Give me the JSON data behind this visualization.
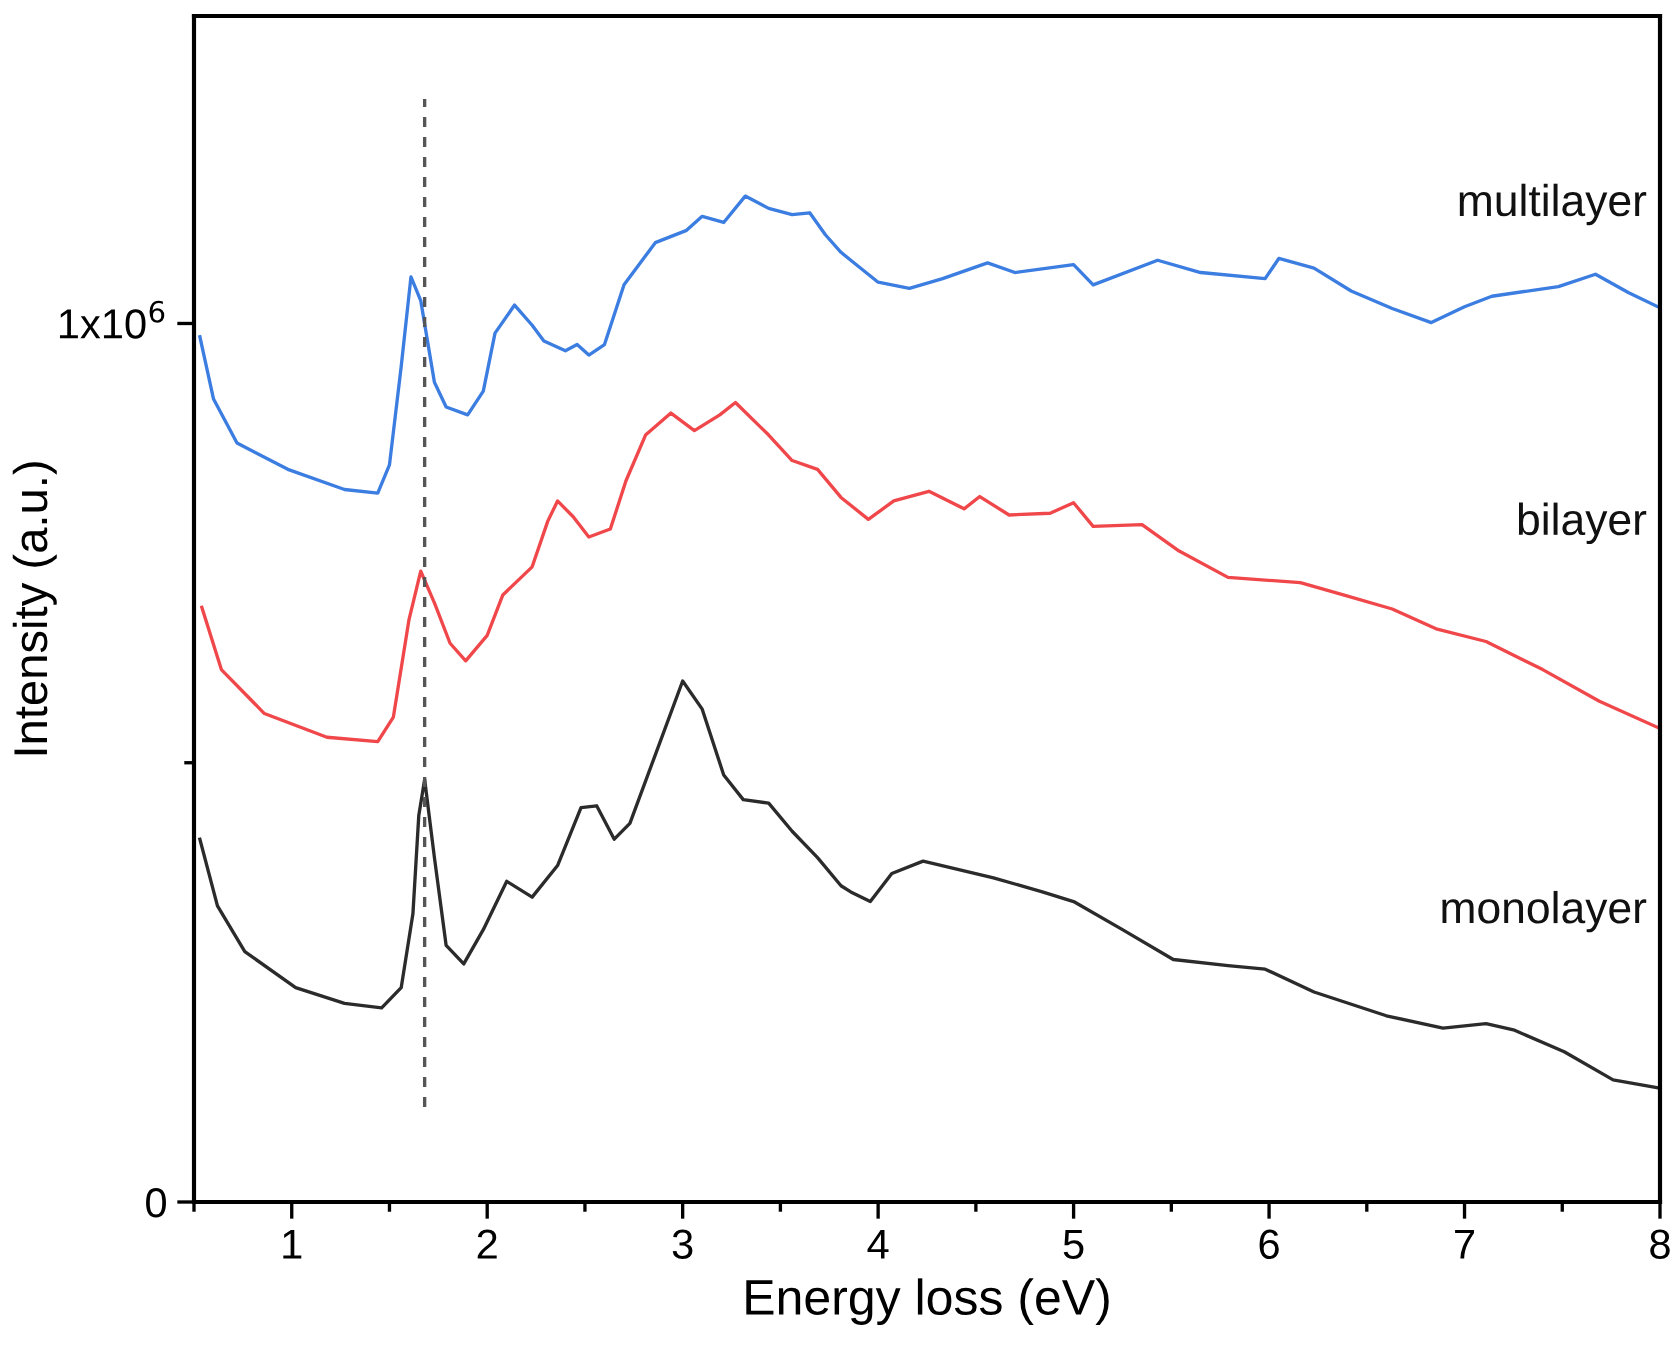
{
  "chart_data": {
    "type": "line",
    "xlabel": "Energy loss (eV)",
    "ylabel": "Intensity (a.u.)",
    "xlim": [
      0.5,
      8
    ],
    "ylim": [
      0,
      1350000
    ],
    "xticks": [
      {
        "value": 0.5,
        "label": null
      },
      1,
      {
        "value": 1.5,
        "label": null
      },
      2,
      {
        "value": 2.5,
        "label": null
      },
      3,
      {
        "value": 3.5,
        "label": null
      },
      4,
      {
        "value": 4.5,
        "label": null
      },
      5,
      {
        "value": 5.5,
        "label": null
      },
      6,
      {
        "value": 6.5,
        "label": null
      },
      7,
      {
        "value": 7.5,
        "label": null
      },
      8
    ],
    "yticks": [
      0,
      {
        "value": 500000,
        "label": null
      },
      {
        "value": 1000000,
        "label": "1x10$^{6}$"
      }
    ],
    "grid": false,
    "legend": false,
    "line_style": "solid",
    "marker": "none",
    "ref_lines": [
      {
        "axis": "x",
        "value": 1.68,
        "color": "#555555",
        "line_style": "dashed"
      }
    ],
    "series": [
      {
        "name": "multilayer",
        "color": "#3b7de0",
        "x": [
          0.53,
          0.6,
          0.72,
          0.98,
          1.27,
          1.44,
          1.5,
          1.56,
          1.61,
          1.66,
          1.73,
          1.79,
          1.9,
          1.98,
          2.04,
          2.14,
          2.23,
          2.29,
          2.4,
          2.46,
          2.52,
          2.6,
          2.7,
          2.86,
          3.02,
          3.1,
          3.21,
          3.32,
          3.44,
          3.56,
          3.65,
          3.73,
          3.81,
          3.86,
          4.0,
          4.16,
          4.33,
          4.56,
          4.7,
          5.0,
          5.1,
          5.43,
          5.65,
          5.98,
          6.05,
          6.23,
          6.42,
          6.63,
          6.83,
          7.0,
          7.14,
          7.48,
          7.67,
          7.84,
          7.99
        ],
        "values": [
          985000,
          914000,
          864000,
          834000,
          811000,
          807000,
          839000,
          951000,
          1053000,
          1026000,
          933000,
          905000,
          896000,
          923000,
          989000,
          1021000,
          998000,
          980000,
          969000,
          976000,
          964000,
          976000,
          1044000,
          1092000,
          1106000,
          1122000,
          1115000,
          1145000,
          1131000,
          1124000,
          1126000,
          1101000,
          1081000,
          1072000,
          1047000,
          1040000,
          1051000,
          1069000,
          1058000,
          1067000,
          1044000,
          1072000,
          1058000,
          1051000,
          1074000,
          1063000,
          1037000,
          1017000,
          1001000,
          1019000,
          1031000,
          1042000,
          1056000,
          1035000,
          1019000
        ]
      },
      {
        "name": "bilayer",
        "color": "#f0474a",
        "x": [
          0.54,
          0.64,
          0.86,
          1.18,
          1.44,
          1.52,
          1.6,
          1.66,
          1.73,
          1.81,
          1.89,
          2.0,
          2.08,
          2.23,
          2.31,
          2.36,
          2.44,
          2.52,
          2.63,
          2.71,
          2.81,
          2.94,
          3.06,
          3.19,
          3.27,
          3.44,
          3.56,
          3.69,
          3.81,
          3.95,
          4.08,
          4.26,
          4.44,
          4.52,
          4.67,
          4.88,
          5.0,
          5.1,
          5.35,
          5.54,
          5.79,
          6.16,
          6.38,
          6.63,
          6.86,
          7.11,
          7.4,
          7.69,
          7.99
        ],
        "values": [
          677000,
          606000,
          556000,
          529000,
          524000,
          552000,
          663000,
          718000,
          682000,
          636000,
          616000,
          645000,
          691000,
          723000,
          775000,
          798000,
          780000,
          757000,
          766000,
          821000,
          873000,
          898000,
          878000,
          896000,
          910000,
          873000,
          844000,
          834000,
          802000,
          777000,
          798000,
          809000,
          789000,
          803000,
          782000,
          784000,
          796000,
          769000,
          771000,
          741000,
          711000,
          705000,
          691000,
          675000,
          652000,
          638000,
          606000,
          570000,
          540000
        ]
      },
      {
        "name": "monolayer",
        "color": "#2b2b2b",
        "x": [
          0.53,
          0.62,
          0.76,
          1.02,
          1.27,
          1.46,
          1.56,
          1.62,
          1.65,
          1.68,
          1.73,
          1.79,
          1.88,
          1.98,
          2.1,
          2.23,
          2.36,
          2.48,
          2.56,
          2.65,
          2.73,
          2.86,
          3.0,
          3.1,
          3.21,
          3.31,
          3.44,
          3.56,
          3.69,
          3.81,
          3.86,
          3.96,
          4.07,
          4.23,
          4.59,
          4.84,
          5.0,
          5.25,
          5.51,
          5.79,
          5.98,
          6.23,
          6.6,
          6.89,
          7.11,
          7.25,
          7.51,
          7.76,
          7.99
        ],
        "values": [
          413000,
          337000,
          285000,
          244000,
          226000,
          221000,
          244000,
          328000,
          440000,
          481000,
          392000,
          292000,
          271000,
          310000,
          365000,
          347000,
          383000,
          449000,
          451000,
          413000,
          431000,
          509000,
          593000,
          561000,
          486000,
          458000,
          454000,
          422000,
          392000,
          360000,
          353000,
          342000,
          374000,
          388000,
          369000,
          353000,
          342000,
          310000,
          276000,
          269000,
          265000,
          239000,
          212000,
          198000,
          203000,
          196000,
          171000,
          139000,
          130000
        ]
      }
    ]
  }
}
